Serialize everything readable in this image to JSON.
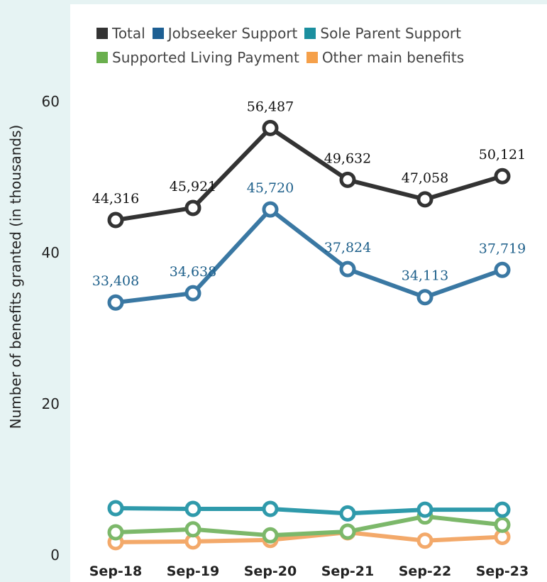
{
  "chart_data": {
    "type": "line",
    "ylabel": "Number of benefits granted (in thousands)",
    "xlabel": "",
    "categories": [
      "Sep-18",
      "Sep-19",
      "Sep-20",
      "Sep-21",
      "Sep-22",
      "Sep-23"
    ],
    "ylim": [
      0,
      60
    ],
    "yticks": [
      0,
      20,
      40,
      60
    ],
    "grid": false,
    "legend_position": "top",
    "series": [
      {
        "name": "Total",
        "color": "#333333",
        "values": [
          44.316,
          45.921,
          56.487,
          49.632,
          47.058,
          50.121
        ],
        "labels": [
          "44,316",
          "45,921",
          "56,487",
          "49,632",
          "47,058",
          "50,121"
        ],
        "label_color": "#111111"
      },
      {
        "name": "Jobseeker Support",
        "color": "#3a78a3",
        "legend_color": "#1d5f93",
        "values": [
          33.408,
          34.638,
          45.72,
          37.824,
          34.113,
          37.719
        ],
        "labels": [
          "33,408",
          "34,638",
          "45,720",
          "37,824",
          "34,113",
          "37,719"
        ],
        "label_color": "#1d5f8a"
      },
      {
        "name": "Sole Parent Support",
        "color": "#2f9aab",
        "legend_color": "#1b8f9f",
        "values": [
          6.2,
          6.1,
          6.1,
          5.5,
          6.0,
          6.0
        ]
      },
      {
        "name": "Supported Living Payment",
        "color": "#7cb86a",
        "legend_color": "#6aaf4e",
        "values": [
          3.0,
          3.4,
          2.6,
          3.1,
          5.1,
          4.0
        ]
      },
      {
        "name": "Other main benefits",
        "color": "#f3a96a",
        "legend_color": "#f5a04a",
        "values": [
          1.7,
          1.8,
          2.0,
          3.0,
          1.9,
          2.4
        ]
      }
    ]
  }
}
